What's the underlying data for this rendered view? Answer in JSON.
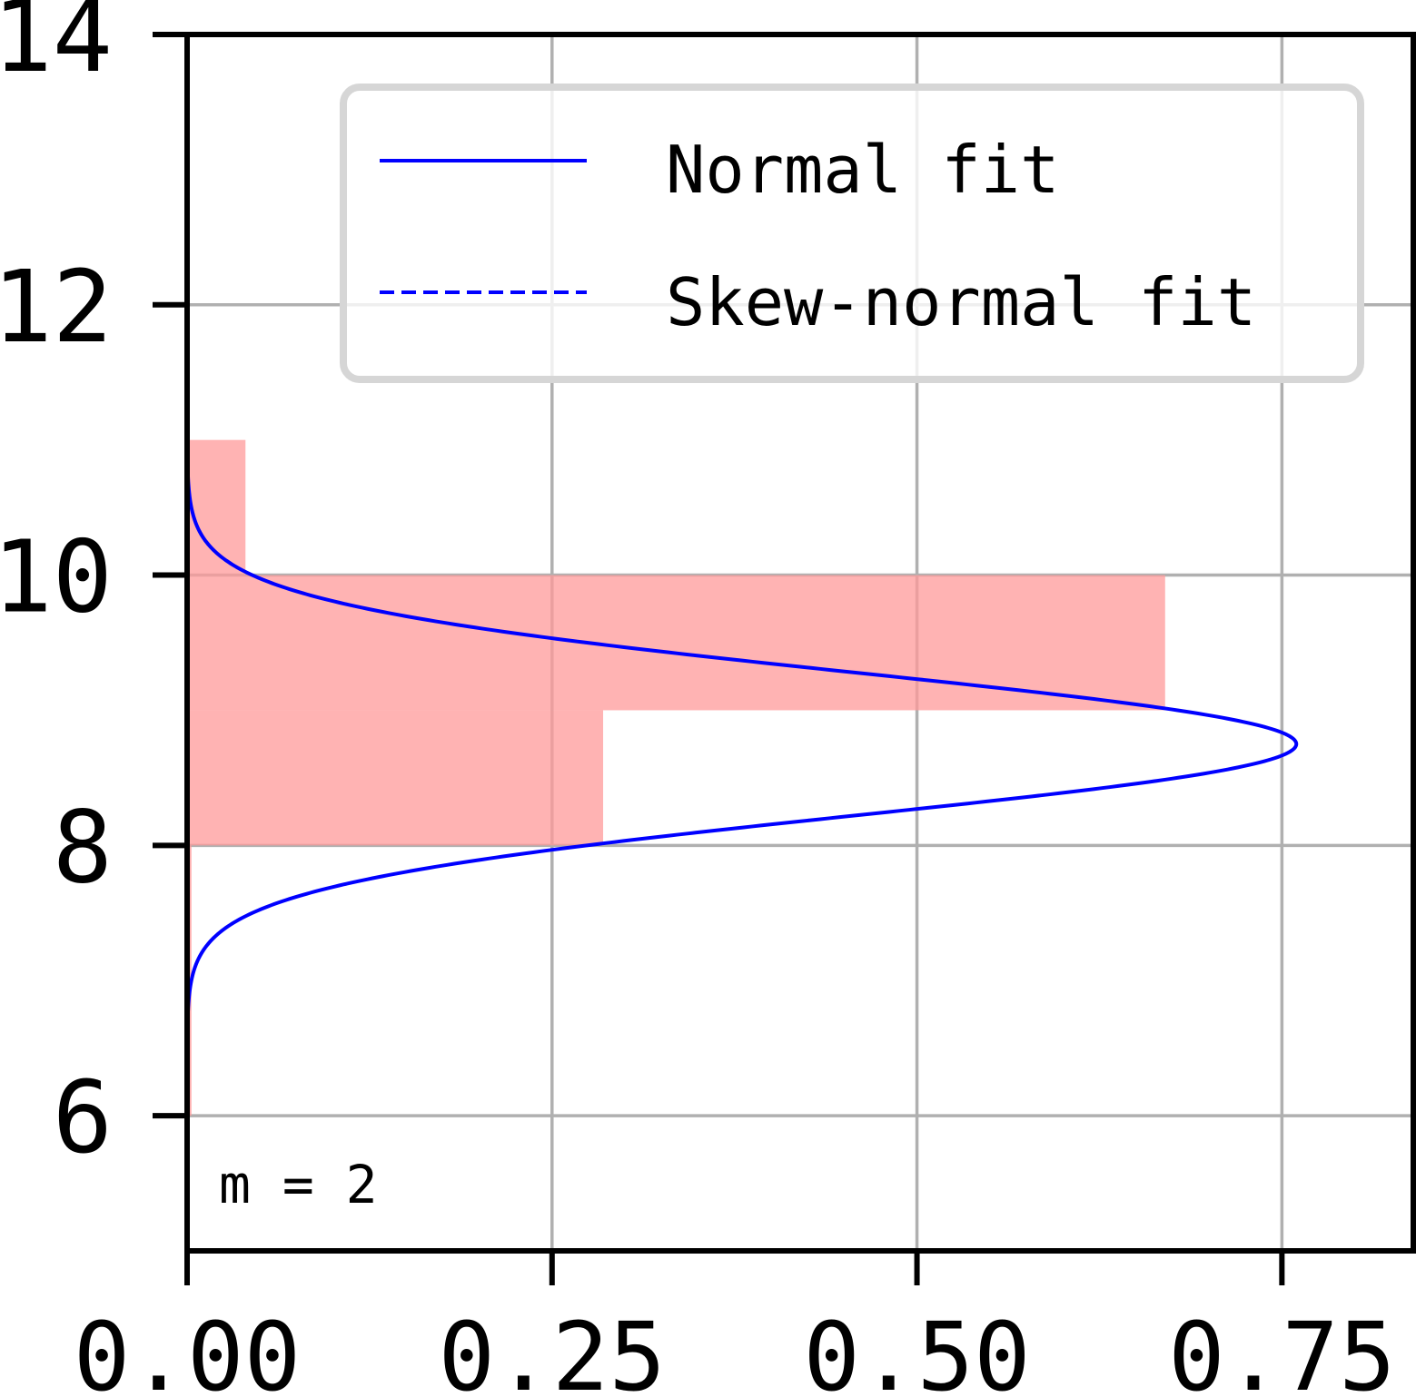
{
  "chart_data": {
    "type": "bar",
    "orientation": "horizontal",
    "xlim": [
      0.0,
      0.84
    ],
    "ylim": [
      5.0,
      14.0
    ],
    "xticks": [
      0.0,
      0.25,
      0.5,
      0.75
    ],
    "xtick_labels": [
      "0.00",
      "0.25",
      "0.50",
      "0.75"
    ],
    "yticks": [
      6,
      8,
      10,
      12,
      14
    ],
    "ytick_labels": [
      "6",
      "8",
      "10",
      "12",
      "14"
    ],
    "grid": true,
    "legend_position": "upper-right",
    "annotation": "m = 2",
    "histogram": {
      "color": "#ff9999",
      "bins": [
        {
          "y0": 6,
          "y1": 8,
          "value": 0.003
        },
        {
          "y0": 8,
          "y1": 9,
          "value": 0.285
        },
        {
          "y0": 9,
          "y1": 10,
          "value": 0.67
        },
        {
          "y0": 10,
          "y1": 11,
          "value": 0.04
        }
      ]
    },
    "series": [
      {
        "name": "Normal fit",
        "style": "solid",
        "color": "#0000ff",
        "type": "normal",
        "mean": 8.75,
        "sd": 0.525
      },
      {
        "name": "Skew-normal fit",
        "style": "dashed",
        "color": "#0000ff",
        "type": "skew-normal",
        "peak_y": 8.9,
        "peak_x": 0.8
      }
    ]
  }
}
